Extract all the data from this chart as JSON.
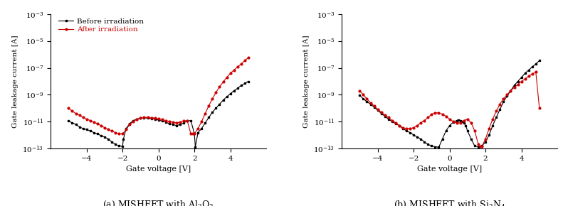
{
  "ylabel": "Gate leakage current [A]",
  "xlabel": "Gate voltage [V]",
  "xlim": [
    -6,
    6
  ],
  "ylim_log": [
    -13,
    -3
  ],
  "legend_before": "Before irradiation",
  "legend_after": "After irradiation",
  "color_before": "#000000",
  "color_after": "#cc0000",
  "marker_before": "s",
  "marker_after": "o",
  "markersize": 2.0,
  "linewidth": 0.8,
  "a_before_x": [
    -5.0,
    -4.8,
    -4.6,
    -4.4,
    -4.2,
    -4.0,
    -3.8,
    -3.6,
    -3.4,
    -3.2,
    -3.0,
    -2.8,
    -2.6,
    -2.4,
    -2.2,
    -2.0,
    -1.95,
    -1.8,
    -1.6,
    -1.4,
    -1.2,
    -1.0,
    -0.8,
    -0.6,
    -0.4,
    -0.2,
    0.0,
    0.2,
    0.4,
    0.6,
    0.8,
    1.0,
    1.2,
    1.4,
    1.6,
    1.8,
    2.0,
    2.05,
    2.2,
    2.4,
    2.6,
    2.8,
    3.0,
    3.2,
    3.4,
    3.6,
    3.8,
    4.0,
    4.2,
    4.4,
    4.6,
    4.8,
    5.0
  ],
  "a_before_y": [
    1.1e-11,
    8e-12,
    6e-12,
    4e-12,
    3e-12,
    2.5e-12,
    2e-12,
    1.5e-12,
    1.2e-12,
    9e-13,
    7e-13,
    5e-13,
    3e-13,
    2e-13,
    1.5e-13,
    1.4e-13,
    5e-13,
    3e-12,
    7e-12,
    1.2e-11,
    1.5e-11,
    1.8e-11,
    1.9e-11,
    1.8e-11,
    1.7e-11,
    1.5e-11,
    1.3e-11,
    1.1e-11,
    9e-12,
    7e-12,
    6e-12,
    5e-12,
    6e-12,
    8e-12,
    1.1e-11,
    1.2e-11,
    1.2e-12,
    1.3e-13,
    1.5e-12,
    3e-12,
    8e-12,
    2e-11,
    5e-11,
    1e-10,
    2e-10,
    4e-10,
    7e-10,
    1.2e-09,
    2e-09,
    3e-09,
    5e-09,
    7e-09,
    1e-08
  ],
  "a_after_x": [
    -5.0,
    -4.8,
    -4.6,
    -4.4,
    -4.2,
    -4.0,
    -3.8,
    -3.6,
    -3.4,
    -3.2,
    -3.0,
    -2.8,
    -2.6,
    -2.4,
    -2.2,
    -2.0,
    -1.8,
    -1.6,
    -1.4,
    -1.2,
    -1.0,
    -0.8,
    -0.6,
    -0.4,
    -0.2,
    0.0,
    0.2,
    0.4,
    0.6,
    0.8,
    1.0,
    1.2,
    1.4,
    1.6,
    1.8,
    1.9,
    2.0,
    2.2,
    2.4,
    2.6,
    2.8,
    3.0,
    3.2,
    3.4,
    3.6,
    3.8,
    4.0,
    4.2,
    4.4,
    4.6,
    4.8,
    5.0
  ],
  "a_after_y": [
    1e-10,
    6e-11,
    4e-11,
    3e-11,
    2e-11,
    1.5e-11,
    1.2e-11,
    9e-12,
    7e-12,
    5e-12,
    3.5e-12,
    2.5e-12,
    2e-12,
    1.5e-12,
    1.2e-12,
    1.2e-12,
    2.5e-12,
    6e-12,
    1e-11,
    1.5e-11,
    1.8e-11,
    2e-11,
    2e-11,
    1.9e-11,
    1.8e-11,
    1.6e-11,
    1.4e-11,
    1.2e-11,
    1e-11,
    9e-12,
    8e-12,
    9e-12,
    1.1e-11,
    1.2e-11,
    1.2e-12,
    1.2e-12,
    1.2e-12,
    3e-12,
    1e-11,
    4e-11,
    1.5e-10,
    5e-10,
    1.5e-09,
    4e-09,
    9e-09,
    2e-08,
    4e-08,
    7e-08,
    1.2e-07,
    2e-07,
    3.5e-07,
    6e-07
  ],
  "b_before_x": [
    -5.0,
    -4.8,
    -4.6,
    -4.4,
    -4.2,
    -4.0,
    -3.8,
    -3.6,
    -3.4,
    -3.2,
    -3.0,
    -2.8,
    -2.6,
    -2.4,
    -2.2,
    -2.0,
    -1.8,
    -1.6,
    -1.4,
    -1.2,
    -1.0,
    -0.8,
    -0.6,
    -0.4,
    -0.2,
    0.0,
    0.2,
    0.4,
    0.5,
    0.6,
    0.7,
    0.8,
    0.9,
    1.0,
    1.2,
    1.4,
    1.6,
    1.8,
    2.0,
    2.2,
    2.4,
    2.6,
    2.8,
    3.0,
    3.2,
    3.4,
    3.6,
    3.8,
    4.0,
    4.2,
    4.4,
    4.6,
    4.8,
    5.0
  ],
  "b_before_y": [
    9e-10,
    5e-10,
    3e-10,
    2e-10,
    1.2e-10,
    7e-11,
    4e-11,
    2.5e-11,
    1.5e-11,
    1e-11,
    7e-12,
    5e-12,
    3e-12,
    2e-12,
    1.5e-12,
    1e-12,
    7e-13,
    5e-13,
    3e-13,
    2e-13,
    1.5e-13,
    1.3e-13,
    1.2e-13,
    5e-13,
    2e-12,
    5e-12,
    9e-12,
    1.2e-11,
    1.3e-11,
    1.2e-11,
    1e-11,
    8e-12,
    5e-12,
    2e-12,
    5e-13,
    1.5e-13,
    1.3e-13,
    1.5e-13,
    3e-13,
    1e-12,
    5e-12,
    2e-11,
    8e-11,
    3e-10,
    8e-10,
    2e-09,
    5e-09,
    1e-08,
    2e-08,
    4e-08,
    7e-08,
    1.2e-07,
    2e-07,
    3.5e-07
  ],
  "b_after_x": [
    -5.0,
    -4.8,
    -4.6,
    -4.4,
    -4.2,
    -4.0,
    -3.8,
    -3.6,
    -3.4,
    -3.2,
    -3.0,
    -2.8,
    -2.6,
    -2.4,
    -2.2,
    -2.0,
    -1.8,
    -1.6,
    -1.4,
    -1.2,
    -1.0,
    -0.8,
    -0.6,
    -0.4,
    -0.2,
    0.0,
    0.2,
    0.4,
    0.6,
    0.8,
    1.0,
    1.2,
    1.4,
    1.6,
    1.7,
    1.8,
    2.0,
    2.2,
    2.4,
    2.6,
    2.8,
    3.0,
    3.2,
    3.4,
    3.6,
    3.8,
    4.0,
    4.2,
    4.4,
    4.6,
    4.8,
    5.0
  ],
  "b_after_y": [
    2e-09,
    1e-09,
    5e-10,
    2.5e-10,
    1.5e-10,
    8e-11,
    5e-11,
    3e-11,
    2e-11,
    1.2e-11,
    8e-12,
    5e-12,
    3.5e-12,
    3e-12,
    3e-12,
    3.5e-12,
    5e-12,
    8e-12,
    1.2e-11,
    2e-11,
    3.5e-11,
    4.5e-11,
    4.5e-11,
    3.5e-11,
    2.5e-11,
    1.5e-11,
    1e-11,
    8e-12,
    8e-12,
    1.2e-11,
    1.5e-11,
    8e-12,
    2e-12,
    2e-13,
    1.4e-13,
    1.4e-13,
    5e-13,
    3e-12,
    1.5e-11,
    6e-11,
    2e-10,
    5e-10,
    1e-09,
    2e-09,
    3.5e-09,
    6e-09,
    1e-08,
    1.5e-08,
    2.5e-08,
    3.5e-08,
    5e-08,
    1e-10
  ]
}
